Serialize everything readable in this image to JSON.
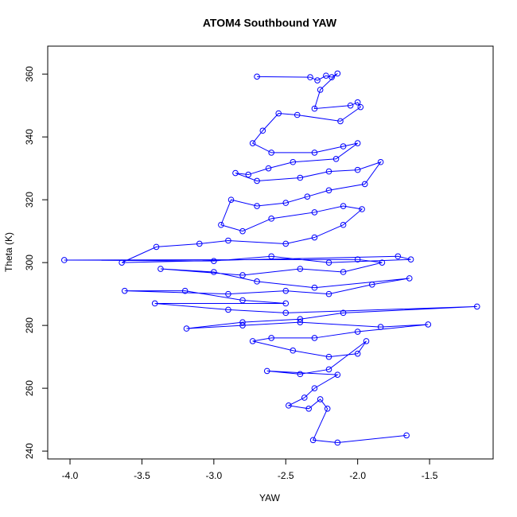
{
  "chart_data": {
    "type": "scatter",
    "connect": true,
    "color": "#0000ff",
    "title": "ATOM4 Southbound YAW",
    "x_label": "YAW",
    "y_label": "Theta (K)",
    "xlim": [
      -4.155,
      -1.058
    ],
    "ylim": [
      237.5,
      368.9
    ],
    "xticks": [
      {
        "value": -4,
        "label": "-4.0"
      },
      -3.5,
      {
        "value": -3,
        "label": "-3.0"
      },
      -2.5,
      {
        "value": -2,
        "label": "-2.0"
      },
      -1.5
    ],
    "yticks": [
      240,
      260,
      280,
      300,
      320,
      340,
      360
    ],
    "x": [
      -2.7,
      -2.33,
      -2.28,
      -2.22,
      -2.18,
      -2.14,
      -2.26,
      -2.3,
      -2.05,
      -2.0,
      -1.98,
      -2.12,
      -2.42,
      -2.55,
      -2.66,
      -2.73,
      -2.6,
      -2.3,
      -2.1,
      -2.0,
      -2.15,
      -2.45,
      -2.62,
      -2.76,
      -2.85,
      -2.7,
      -2.4,
      -2.2,
      -2.0,
      -1.84,
      -1.95,
      -2.2,
      -2.35,
      -2.5,
      -2.7,
      -2.88,
      -2.95,
      -2.8,
      -2.6,
      -2.3,
      -2.1,
      -1.97,
      -2.1,
      -2.3,
      -2.5,
      -2.9,
      -3.1,
      -3.4,
      -3.64,
      -1.72,
      -1.63,
      -2.2,
      -2.6,
      -3.0,
      -4.04,
      -2.0,
      -1.83,
      -2.1,
      -2.4,
      -2.8,
      -3.37,
      -3.0,
      -2.7,
      -2.3,
      -1.64,
      -1.9,
      -2.2,
      -2.5,
      -2.9,
      -3.62,
      -3.2,
      -2.8,
      -2.5,
      -3.41,
      -2.9,
      -2.5,
      -1.17,
      -2.1,
      -2.4,
      -2.8,
      -3.19,
      -2.8,
      -2.4,
      -1.84,
      -1.51,
      -2.0,
      -2.3,
      -2.6,
      -2.73,
      -2.45,
      -2.2,
      -2.0,
      -1.94,
      -2.2,
      -2.4,
      -2.63,
      -2.14,
      -2.3,
      -2.37,
      -2.48,
      -2.34,
      -2.26,
      -2.21,
      -2.31,
      -2.14,
      -1.66
    ],
    "y": [
      359.2,
      359,
      358,
      359.5,
      359,
      360.2,
      355,
      349,
      350,
      351,
      349.5,
      345,
      347,
      347.5,
      342,
      338,
      335,
      335,
      337,
      338,
      333,
      332,
      330,
      328,
      328.5,
      326,
      327,
      329,
      329.5,
      332,
      325,
      323,
      321,
      319,
      318,
      320,
      312,
      310,
      314,
      316,
      318,
      317,
      312,
      308,
      306,
      307,
      306,
      305,
      300,
      302,
      301,
      300,
      302,
      300.5,
      300.8,
      301,
      300,
      297,
      298,
      296,
      298,
      297,
      294,
      292,
      295,
      293,
      290,
      291,
      290,
      291,
      291,
      288,
      287,
      287,
      285,
      284,
      286,
      284,
      282,
      281,
      279,
      280,
      281,
      279.5,
      280.3,
      278,
      276,
      276,
      275,
      272,
      270,
      271,
      275,
      266,
      264.5,
      265.5,
      264.3,
      260,
      257,
      254.5,
      253.5,
      256.5,
      253.5,
      243.5,
      242.7,
      245
    ]
  }
}
